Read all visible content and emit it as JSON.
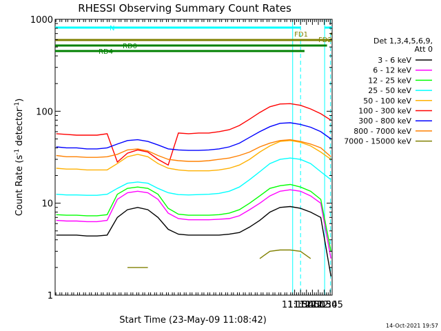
{
  "chart_data": {
    "type": "line",
    "title": "RHESSI Observing Summary Count Rates",
    "xlabel": "Start Time (23-May-09 11:08:42)",
    "ylabel_main": "Count Rate (s",
    "ylabel_sup1": "-1",
    "ylabel_mid": " detector",
    "ylabel_sup2": "-1",
    "ylabel_end": ")",
    "timestamp": "14-Oct-2021 19:57",
    "x_range_min": [
      68,
      770
    ],
    "y_scale": "log",
    "ylim": [
      1,
      1000
    ],
    "y_ticks": [
      {
        "v": 1,
        "label": "1"
      },
      {
        "v": 10,
        "label": "10"
      },
      {
        "v": 100,
        "label": "100"
      },
      {
        "v": 1000,
        "label": "1000"
      }
    ],
    "x_ticks": [
      {
        "t": 675,
        "label": "11:15"
      },
      {
        "t": 690,
        "label": "11:30"
      },
      {
        "t": 705,
        "label": "11:45"
      },
      {
        "t": 720,
        "label": "12:00"
      },
      {
        "t": 735,
        "label": "12:15"
      },
      {
        "t": 750,
        "label": "12:30"
      },
      {
        "t": 765,
        "label": "12:45"
      }
    ],
    "legend_header": [
      "Det 1,3,4,5,6,9,",
      "Att 0"
    ],
    "legend_placement": "right",
    "series": [
      {
        "name": "3 - 6 keV",
        "color": "#000000",
        "values": [
          4.5,
          4.5,
          4.5,
          4.4,
          4.4,
          4.5,
          7.0,
          8.5,
          9.0,
          8.5,
          7.0,
          5.2,
          4.6,
          4.5,
          4.5,
          4.5,
          4.5,
          4.6,
          4.8,
          5.5,
          6.5,
          8.0,
          9.0,
          9.2,
          8.8,
          8.0,
          7.0,
          1.6
        ]
      },
      {
        "name": "6 - 12 keV",
        "color": "#ff00ff",
        "values": [
          6.5,
          6.4,
          6.4,
          6.3,
          6.3,
          6.5,
          11.0,
          13.0,
          13.5,
          13.0,
          11.0,
          7.8,
          6.8,
          6.6,
          6.6,
          6.6,
          6.7,
          6.8,
          7.3,
          8.5,
          10.0,
          12.0,
          13.5,
          14.0,
          13.5,
          12.0,
          10.0,
          2.5
        ]
      },
      {
        "name": "12 - 25 keV",
        "color": "#00ff00",
        "values": [
          7.5,
          7.4,
          7.4,
          7.3,
          7.3,
          7.5,
          12.5,
          14.5,
          15.0,
          14.5,
          12.5,
          8.8,
          7.6,
          7.4,
          7.4,
          7.4,
          7.5,
          7.8,
          8.5,
          10.0,
          12.0,
          14.5,
          15.5,
          16.0,
          15.0,
          13.5,
          11.0,
          3.0
        ]
      },
      {
        "name": "25 - 50 keV",
        "color": "#00ffff",
        "values": [
          12.5,
          12.3,
          12.3,
          12.2,
          12.2,
          12.5,
          14.5,
          16.5,
          17.0,
          16.5,
          14.5,
          13.0,
          12.4,
          12.3,
          12.4,
          12.5,
          12.8,
          13.5,
          15.0,
          18.0,
          22.0,
          27.0,
          30.0,
          31.0,
          30.0,
          27.0,
          22.0,
          18.0
        ]
      },
      {
        "name": "50 - 100 keV",
        "color": "#ffb000",
        "values": [
          24.0,
          23.5,
          23.5,
          23.0,
          23.0,
          23.0,
          27.0,
          32.0,
          34.0,
          32.0,
          27.0,
          24.0,
          23.0,
          22.5,
          22.5,
          22.5,
          23.0,
          24.0,
          26.0,
          30.0,
          36.0,
          42.0,
          47.0,
          48.0,
          46.0,
          42.0,
          36.0,
          30.0
        ]
      },
      {
        "name": "100 - 300 keV",
        "color": "#ff0000",
        "values": [
          57.0,
          56.0,
          55.0,
          55.0,
          55.0,
          57.0,
          28.0,
          35.0,
          38.0,
          36.0,
          30.0,
          26.0,
          58.0,
          57.0,
          58.0,
          58.0,
          60.0,
          63.0,
          70.0,
          82.0,
          97.0,
          112.0,
          120.0,
          121.0,
          116.0,
          106.0,
          94.0,
          80.0
        ]
      },
      {
        "name": "300 - 800 keV",
        "color": "#0000ff",
        "values": [
          41.0,
          40.0,
          40.0,
          39.0,
          39.0,
          40.0,
          44.0,
          48.0,
          49.0,
          47.0,
          43.0,
          39.0,
          38.0,
          37.5,
          37.5,
          38.0,
          39.0,
          41.0,
          45.0,
          52.0,
          60.0,
          68.0,
          74.0,
          75.0,
          72.0,
          67.0,
          60.0,
          50.0
        ]
      },
      {
        "name": "800 - 7000 keV",
        "color": "#ff8000",
        "values": [
          33.0,
          32.0,
          32.0,
          31.5,
          31.5,
          32.0,
          34.0,
          38.0,
          39.0,
          37.0,
          33.0,
          30.0,
          29.0,
          28.5,
          28.5,
          29.0,
          30.0,
          31.0,
          33.0,
          36.0,
          41.0,
          45.0,
          48.0,
          49.0,
          47.0,
          44.0,
          40.0,
          32.0
        ]
      },
      {
        "name": "7000 - 15000 keV",
        "color": "#808000",
        "values": [
          null,
          null,
          null,
          null,
          null,
          null,
          null,
          2.0,
          2.0,
          2.0,
          null,
          null,
          null,
          null,
          null,
          null,
          null,
          null,
          null,
          null,
          2.5,
          3.0,
          3.1,
          3.1,
          3.0,
          2.5,
          null,
          null
        ]
      }
    ],
    "sample_times_min": [
      69,
      72,
      75,
      78,
      81,
      84,
      87,
      90,
      93,
      96,
      99,
      102,
      105,
      108,
      111,
      114,
      117,
      120,
      123,
      126,
      129,
      132,
      135,
      138,
      141,
      144,
      147,
      150
    ],
    "flag_labels": {
      "N": "N",
      "FD1": "FD1",
      "FD2": "FD2",
      "RD0": "RD0",
      "RD4": "RD4"
    },
    "flags": [
      {
        "name": "N",
        "color": "#00ffff",
        "segments": [
          [
            68,
            690
          ],
          [
            751,
            770
          ]
        ]
      },
      {
        "name": "FD1",
        "color": "#808000",
        "segments": [
          [
            766,
            769
          ]
        ]
      },
      {
        "name": "FD2",
        "color": "#808000",
        "segments": [
          [
            68,
            770
          ]
        ]
      },
      {
        "name": "RD0",
        "color": "#008000",
        "segments": [
          [
            68,
            757
          ]
        ]
      },
      {
        "name": "RD4",
        "color": "#008000",
        "segments": [
          [
            68,
            700
          ]
        ]
      }
    ],
    "vlines": [
      {
        "t": 670,
        "color": "#00ffff",
        "style": "solid"
      },
      {
        "t": 690,
        "color": "#00ffff",
        "style": "dashed"
      },
      {
        "t": 751,
        "color": "#00ffff",
        "style": "solid"
      },
      {
        "t": 766,
        "color": "#00ffff",
        "style": "dashed"
      }
    ]
  }
}
